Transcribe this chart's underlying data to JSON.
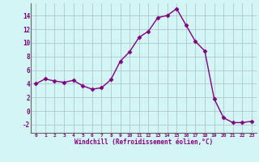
{
  "x": [
    0,
    1,
    2,
    3,
    4,
    5,
    6,
    7,
    8,
    9,
    10,
    11,
    12,
    13,
    14,
    15,
    16,
    17,
    18,
    19,
    20,
    21,
    22,
    23
  ],
  "y": [
    4.0,
    4.7,
    4.4,
    4.2,
    4.5,
    3.7,
    3.2,
    3.4,
    4.6,
    7.3,
    8.7,
    10.8,
    11.7,
    13.7,
    14.0,
    15.0,
    12.6,
    10.2,
    8.8,
    1.8,
    -1.0,
    -1.7,
    -1.7,
    -1.5
  ],
  "xlim": [
    -0.5,
    23.5
  ],
  "ylim": [
    -3.2,
    15.8
  ],
  "yticks": [
    -2,
    0,
    2,
    4,
    6,
    8,
    10,
    12,
    14
  ],
  "xticks": [
    0,
    1,
    2,
    3,
    4,
    5,
    6,
    7,
    8,
    9,
    10,
    11,
    12,
    13,
    14,
    15,
    16,
    17,
    18,
    19,
    20,
    21,
    22,
    23
  ],
  "xlabel": "Windchill (Refroidissement éolien,°C)",
  "line_color": "#800080",
  "marker": "D",
  "markersize": 2.5,
  "linewidth": 1.0,
  "bg_color": "#d4f5f5",
  "grid_color": "#b0c8c8",
  "tick_color": "#800080",
  "label_color": "#800080"
}
